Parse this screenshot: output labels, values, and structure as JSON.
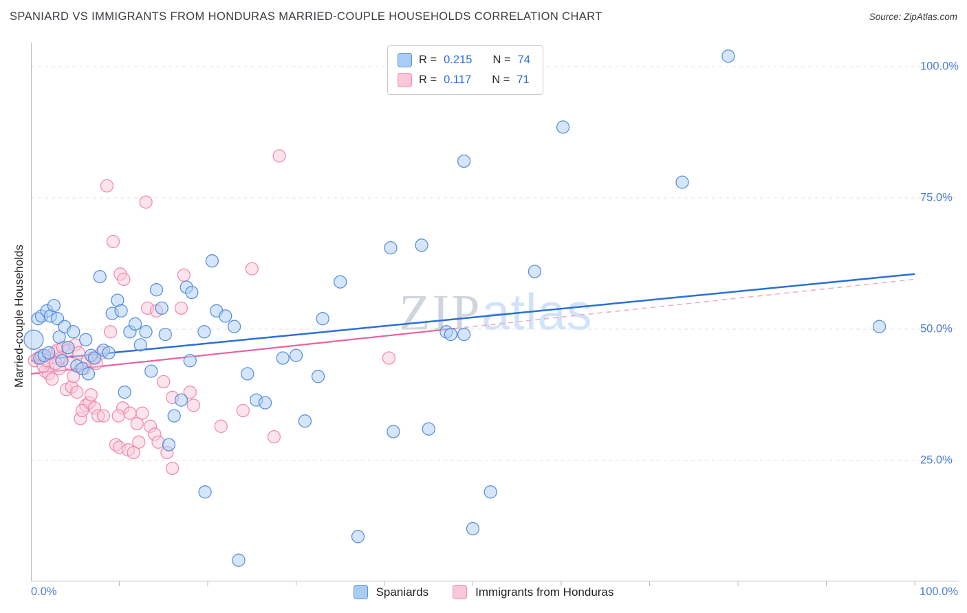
{
  "title": "SPANIARD VS IMMIGRANTS FROM HONDURAS MARRIED-COUPLE HOUSEHOLDS CORRELATION CHART",
  "source": "Source: ZipAtlas.com",
  "watermark": {
    "part1": "ZIP",
    "part2": "atlas"
  },
  "axes": {
    "y_label": "Married-couple Households",
    "y_tick_labels": [
      "100.0%",
      "75.0%",
      "50.0%",
      "25.0%"
    ],
    "x_min_label": "0.0%",
    "x_max_label": "100.0%"
  },
  "legend_box": {
    "series": [
      {
        "name": "Spaniards",
        "r_label": "R =",
        "r_value": "0.215",
        "n_label": "N =",
        "n_value": "74"
      },
      {
        "name": "Immigrants from Honduras",
        "r_label": "R =",
        "r_value": "0.117",
        "n_label": "N =",
        "n_value": "71"
      }
    ]
  },
  "bottom_legend": {
    "items": [
      "Spaniards",
      "Immigrants from Honduras"
    ]
  },
  "colors": {
    "blue_fill": "#aecdf5",
    "blue_stroke": "#4a86d8",
    "blue_line": "#2b6fd6",
    "pink_fill": "#f9c9da",
    "pink_stroke": "#ef82aa",
    "pink_line": "#e8639a",
    "pink_line_dash": "#f2a9c6",
    "accent_text": "#4a7fd9",
    "grid": "#e2e2e2",
    "axis": "#b7bcc2",
    "title_text": "#3a3f45"
  },
  "chart_data": {
    "type": "scatter",
    "title": "SPANIARD VS IMMIGRANTS FROM HONDURAS MARRIED-COUPLE HOUSEHOLDS CORRELATION CHART",
    "xlabel": "",
    "ylabel": "Married-couple Households",
    "xlim": [
      0,
      100
    ],
    "ylim": [
      0,
      100
    ],
    "x_units": "percent",
    "y_units": "percent",
    "grid": "horizontal-dashed",
    "legend_position": "bottom-center",
    "series": [
      {
        "name": "Spaniards",
        "R": 0.215,
        "N": 74,
        "trend": {
          "x": [
            0,
            100
          ],
          "y": [
            44,
            60.5
          ]
        },
        "points": [
          [
            0.3,
            48,
            14
          ],
          [
            0.8,
            52
          ],
          [
            1.2,
            52.5
          ],
          [
            1.8,
            53.5
          ],
          [
            2.2,
            52.5
          ],
          [
            2.6,
            54.5
          ],
          [
            1.0,
            44.5
          ],
          [
            1.5,
            45
          ],
          [
            2.0,
            45.5
          ],
          [
            3.0,
            52
          ],
          [
            3.2,
            48.5
          ],
          [
            3.8,
            50.5
          ],
          [
            4.2,
            46.5
          ],
          [
            4.8,
            49.5
          ],
          [
            5.2,
            43
          ],
          [
            5.8,
            42.5
          ],
          [
            6.2,
            48
          ],
          [
            6.8,
            45
          ],
          [
            7.2,
            44.5
          ],
          [
            7.8,
            60
          ],
          [
            8.2,
            46
          ],
          [
            8.8,
            45.5
          ],
          [
            9.2,
            53
          ],
          [
            9.8,
            55.5
          ],
          [
            10.2,
            53.5
          ],
          [
            10.6,
            38
          ],
          [
            11.2,
            49.5
          ],
          [
            11.8,
            51
          ],
          [
            12.4,
            47
          ],
          [
            13.0,
            49.5
          ],
          [
            13.6,
            42
          ],
          [
            14.2,
            57.5
          ],
          [
            14.8,
            54
          ],
          [
            15.2,
            49
          ],
          [
            15.6,
            28
          ],
          [
            16.2,
            33.5
          ],
          [
            17.0,
            36.5
          ],
          [
            17.6,
            58
          ],
          [
            18.2,
            57
          ],
          [
            20.5,
            63
          ],
          [
            19.6,
            49.5
          ],
          [
            19.7,
            19
          ],
          [
            21.0,
            53.5
          ],
          [
            22.0,
            52.5
          ],
          [
            23.0,
            50.5
          ],
          [
            23.5,
            6
          ],
          [
            24.5,
            41.5
          ],
          [
            25.5,
            36.5
          ],
          [
            26.5,
            36
          ],
          [
            28.5,
            44.5
          ],
          [
            30.0,
            45
          ],
          [
            31.0,
            32.5
          ],
          [
            32.5,
            41
          ],
          [
            33.0,
            52
          ],
          [
            35.0,
            59
          ],
          [
            37.0,
            10.5
          ],
          [
            41.0,
            30.5
          ],
          [
            45.0,
            31
          ],
          [
            47.0,
            49.5
          ],
          [
            47.5,
            49
          ],
          [
            49.0,
            49
          ],
          [
            50.0,
            12
          ],
          [
            52.0,
            19
          ],
          [
            57.0,
            61
          ],
          [
            40.7,
            65.5
          ],
          [
            44.2,
            66
          ],
          [
            49.0,
            82
          ],
          [
            60.2,
            88.5
          ],
          [
            73.7,
            78
          ],
          [
            78.9,
            102
          ],
          [
            96.0,
            50.5
          ],
          [
            18.0,
            44
          ],
          [
            6.5,
            41.5
          ],
          [
            3.5,
            44
          ]
        ]
      },
      {
        "name": "Immigrants from Honduras",
        "R": 0.117,
        "N": 71,
        "trend": {
          "x": [
            0,
            100
          ],
          "y": [
            41.5,
            59.5
          ]
        },
        "trend_dashed_from": 48,
        "points": [
          [
            0.4,
            44
          ],
          [
            0.8,
            44.5
          ],
          [
            1.2,
            45
          ],
          [
            1.6,
            42
          ],
          [
            2.0,
            41.5
          ],
          [
            2.2,
            44.5
          ],
          [
            2.6,
            45.5
          ],
          [
            3.0,
            46
          ],
          [
            3.2,
            42.5
          ],
          [
            3.6,
            46.5
          ],
          [
            4.0,
            38.5
          ],
          [
            4.2,
            46
          ],
          [
            4.6,
            39
          ],
          [
            5.0,
            47
          ],
          [
            5.2,
            38
          ],
          [
            5.6,
            33
          ],
          [
            6.0,
            42.5
          ],
          [
            6.2,
            35.5
          ],
          [
            6.6,
            36
          ],
          [
            7.0,
            44.5
          ],
          [
            7.2,
            35
          ],
          [
            7.6,
            33.5
          ],
          [
            8.0,
            45.5
          ],
          [
            8.2,
            33.5
          ],
          [
            8.6,
            77.3
          ],
          [
            9.3,
            66.7
          ],
          [
            9.0,
            49.5
          ],
          [
            9.6,
            28
          ],
          [
            10.0,
            27.5
          ],
          [
            10.4,
            35
          ],
          [
            11.0,
            27
          ],
          [
            11.6,
            26.5
          ],
          [
            12.0,
            32
          ],
          [
            12.6,
            34
          ],
          [
            13.0,
            74.2
          ],
          [
            10.1,
            60.5
          ],
          [
            10.5,
            59.5
          ],
          [
            13.5,
            31.5
          ],
          [
            14.0,
            30
          ],
          [
            14.4,
            28.5
          ],
          [
            15.0,
            40
          ],
          [
            15.4,
            26.5
          ],
          [
            16.0,
            37
          ],
          [
            13.2,
            54
          ],
          [
            14.2,
            53.5
          ],
          [
            17.0,
            54
          ],
          [
            18.0,
            38
          ],
          [
            18.4,
            35.5
          ],
          [
            16.0,
            23.5
          ],
          [
            17.3,
            60.3
          ],
          [
            21.5,
            31.5
          ],
          [
            25.0,
            61.5
          ],
          [
            28.1,
            83
          ],
          [
            27.5,
            29.5
          ],
          [
            24.0,
            34.5
          ],
          [
            40.5,
            44.5
          ],
          [
            2.4,
            40.5
          ],
          [
            3.4,
            44.5
          ],
          [
            4.4,
            43.5
          ],
          [
            5.4,
            45.5
          ],
          [
            6.4,
            44
          ],
          [
            7.4,
            43.5
          ],
          [
            1.4,
            43
          ],
          [
            1.8,
            44
          ],
          [
            2.8,
            43.5
          ],
          [
            5.8,
            34.5
          ],
          [
            9.9,
            33.5
          ],
          [
            11.2,
            34
          ],
          [
            12.2,
            28.5
          ],
          [
            6.8,
            37.5
          ],
          [
            4.8,
            41
          ]
        ]
      }
    ]
  }
}
